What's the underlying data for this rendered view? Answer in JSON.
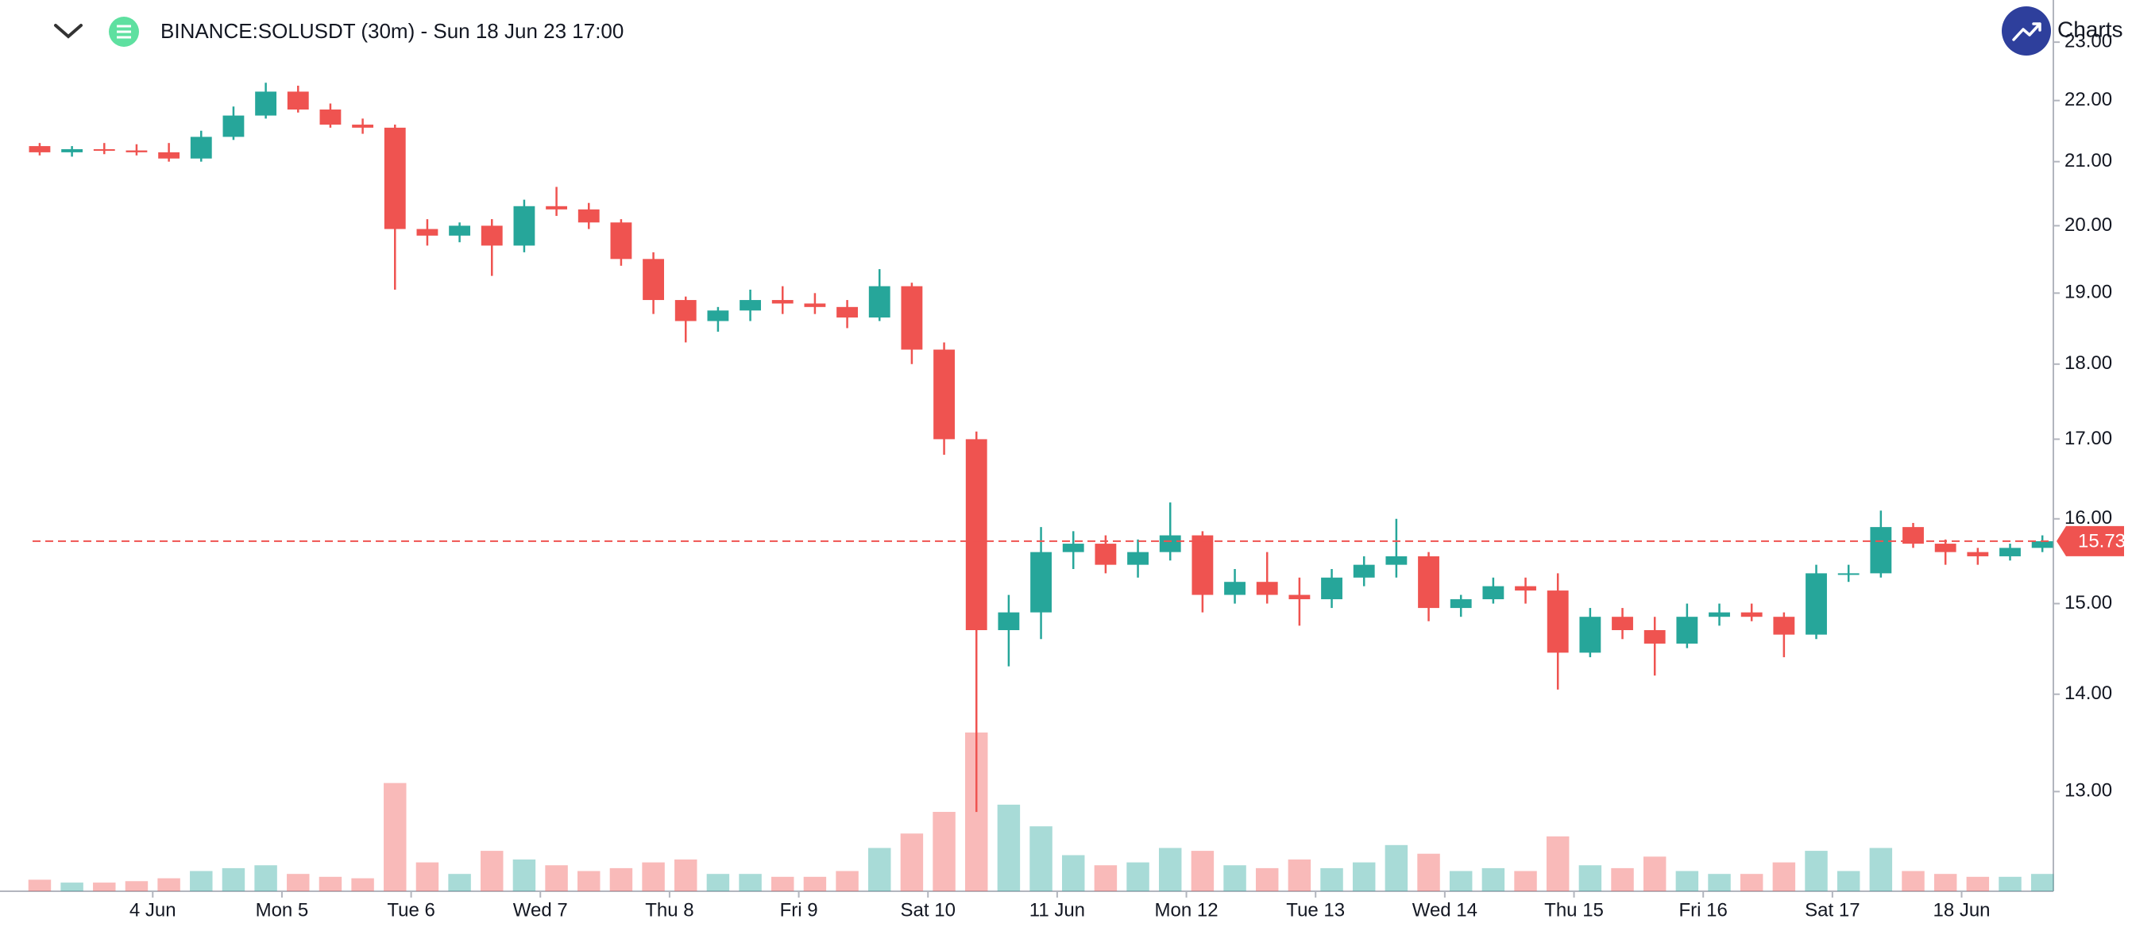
{
  "chart_data": {
    "type": "candlestick",
    "title": "BINANCE:SOLUSDT (30m) - Sun 18 Jun 23 17:00",
    "brand": "Charts",
    "log_scale": true,
    "grid": false,
    "up_color": "#26a69a",
    "down_color": "#ef5350",
    "x": [
      3.125,
      3.375,
      3.625,
      3.875,
      4.125,
      4.375,
      4.625,
      4.875,
      5.125,
      5.375,
      5.625,
      5.875,
      6.125,
      6.375,
      6.625,
      6.875,
      7.125,
      7.375,
      7.625,
      7.875,
      8.125,
      8.375,
      8.625,
      8.875,
      9.125,
      9.375,
      9.625,
      9.875,
      10.125,
      10.375,
      10.625,
      10.875,
      11.125,
      11.375,
      11.625,
      11.875,
      12.125,
      12.375,
      12.625,
      12.875,
      13.125,
      13.375,
      13.625,
      13.875,
      14.125,
      14.375,
      14.625,
      14.875,
      15.125,
      15.375,
      15.625,
      15.875,
      16.125,
      16.375,
      16.625,
      16.875,
      17.125,
      17.375,
      17.625,
      17.875,
      18.125,
      18.375,
      18.625
    ],
    "open": [
      21.25,
      21.15,
      21.2,
      21.18,
      21.15,
      21.05,
      21.4,
      21.75,
      22.15,
      21.85,
      21.6,
      21.55,
      19.95,
      19.85,
      20.0,
      19.7,
      20.3,
      20.25,
      20.05,
      19.5,
      18.9,
      18.6,
      18.75,
      18.9,
      18.85,
      18.8,
      18.65,
      19.1,
      18.2,
      17.0,
      14.7,
      14.9,
      15.6,
      15.7,
      15.45,
      15.6,
      15.8,
      15.1,
      15.25,
      15.1,
      15.05,
      15.3,
      15.45,
      15.55,
      14.95,
      15.05,
      15.2,
      15.15,
      14.45,
      14.85,
      14.7,
      14.55,
      14.85,
      14.9,
      14.85,
      14.65,
      15.35,
      15.35,
      15.9,
      15.7,
      15.6,
      15.55,
      15.65
    ],
    "high": [
      21.3,
      21.25,
      21.3,
      21.28,
      21.3,
      21.5,
      21.9,
      22.3,
      22.25,
      21.95,
      21.7,
      21.6,
      20.1,
      20.05,
      20.1,
      20.4,
      20.6,
      20.35,
      20.1,
      19.6,
      18.95,
      18.8,
      19.05,
      19.1,
      19.0,
      18.9,
      19.35,
      19.15,
      18.3,
      17.1,
      15.1,
      15.9,
      15.85,
      15.8,
      15.75,
      16.2,
      15.85,
      15.4,
      15.6,
      15.3,
      15.4,
      15.55,
      16.0,
      15.6,
      15.1,
      15.3,
      15.3,
      15.35,
      14.95,
      14.95,
      14.85,
      15.0,
      15.0,
      15.0,
      14.9,
      15.45,
      15.45,
      16.1,
      15.95,
      15.75,
      15.65,
      15.7,
      15.8
    ],
    "low": [
      21.1,
      21.08,
      21.12,
      21.1,
      21.0,
      21.0,
      21.35,
      21.7,
      21.8,
      21.55,
      21.45,
      19.05,
      19.7,
      19.75,
      19.25,
      19.6,
      20.15,
      19.95,
      19.4,
      18.7,
      18.3,
      18.45,
      18.6,
      18.7,
      18.7,
      18.5,
      18.6,
      18.0,
      16.8,
      12.8,
      14.3,
      14.6,
      15.4,
      15.35,
      15.3,
      15.5,
      14.9,
      15.0,
      15.0,
      14.75,
      14.95,
      15.2,
      15.3,
      14.8,
      14.85,
      15.0,
      15.0,
      14.05,
      14.4,
      14.6,
      14.2,
      14.5,
      14.75,
      14.8,
      14.4,
      14.6,
      15.25,
      15.3,
      15.65,
      15.45,
      15.45,
      15.5,
      15.6
    ],
    "close": [
      21.15,
      21.2,
      21.18,
      21.15,
      21.05,
      21.4,
      21.75,
      22.15,
      21.85,
      21.6,
      21.55,
      19.95,
      19.85,
      20.0,
      19.7,
      20.3,
      20.25,
      20.05,
      19.5,
      18.9,
      18.6,
      18.75,
      18.9,
      18.85,
      18.8,
      18.65,
      19.1,
      18.2,
      17.0,
      14.7,
      14.9,
      15.6,
      15.7,
      15.45,
      15.6,
      15.8,
      15.1,
      15.25,
      15.1,
      15.05,
      15.3,
      15.45,
      15.55,
      14.95,
      15.05,
      15.2,
      15.15,
      14.45,
      14.85,
      14.7,
      14.55,
      14.85,
      14.9,
      14.85,
      14.65,
      15.35,
      15.35,
      15.9,
      15.7,
      15.6,
      15.55,
      15.65,
      15.73
    ],
    "volume": [
      8,
      6,
      6,
      7,
      9,
      14,
      16,
      18,
      12,
      10,
      9,
      75,
      20,
      12,
      28,
      22,
      18,
      14,
      16,
      20,
      22,
      12,
      12,
      10,
      10,
      14,
      30,
      40,
      55,
      110,
      60,
      45,
      25,
      18,
      20,
      30,
      28,
      18,
      16,
      22,
      16,
      20,
      32,
      26,
      14,
      16,
      14,
      38,
      18,
      16,
      24,
      14,
      12,
      12,
      20,
      28,
      14,
      30,
      14,
      12,
      10,
      10,
      12
    ],
    "last_price": 15.73,
    "xlim": [
      3.07,
      18.71
    ],
    "xticks": [
      {
        "value": 4,
        "label": "4 Jun"
      },
      {
        "value": 5,
        "label": "Mon 5"
      },
      {
        "value": 6,
        "label": "Tue 6"
      },
      {
        "value": 7,
        "label": "Wed 7"
      },
      {
        "value": 8,
        "label": "Thu 8"
      },
      {
        "value": 9,
        "label": "Fri 9"
      },
      {
        "value": 10,
        "label": "Sat 10"
      },
      {
        "value": 11,
        "label": "11 Jun"
      },
      {
        "value": 12,
        "label": "Mon 12"
      },
      {
        "value": 13,
        "label": "Tue 13"
      },
      {
        "value": 14,
        "label": "Wed 14"
      },
      {
        "value": 15,
        "label": "Thu 15"
      },
      {
        "value": 16,
        "label": "Fri 16"
      },
      {
        "value": 17,
        "label": "Sat 17"
      },
      {
        "value": 18,
        "label": "18 Jun"
      }
    ],
    "ylim": [
      12.05,
      23.75
    ],
    "yticks": [
      {
        "value": 13,
        "label": "13.00"
      },
      {
        "value": 14,
        "label": "14.00"
      },
      {
        "value": 15,
        "label": "15.00"
      },
      {
        "value": 16,
        "label": "16.00"
      },
      {
        "value": 17,
        "label": "17.00"
      },
      {
        "value": 18,
        "label": "18.00"
      },
      {
        "value": 19,
        "label": "19.00"
      },
      {
        "value": 20,
        "label": "20.00"
      },
      {
        "value": 21,
        "label": "21.00"
      },
      {
        "value": 22,
        "label": "22.00"
      },
      {
        "value": 23,
        "label": "23.00"
      }
    ]
  }
}
